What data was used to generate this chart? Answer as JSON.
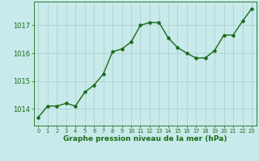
{
  "x": [
    0,
    1,
    2,
    3,
    4,
    5,
    6,
    7,
    8,
    9,
    10,
    11,
    12,
    13,
    14,
    15,
    16,
    17,
    18,
    19,
    20,
    21,
    22,
    23
  ],
  "y": [
    1013.7,
    1014.1,
    1014.1,
    1014.2,
    1014.1,
    1014.6,
    1014.85,
    1015.25,
    1016.05,
    1016.15,
    1016.4,
    1017.0,
    1017.1,
    1017.1,
    1016.55,
    1016.2,
    1016.0,
    1015.82,
    1015.83,
    1016.1,
    1016.65,
    1016.65,
    1017.15,
    1017.6
  ],
  "line_color": "#1a6b1a",
  "marker": "o",
  "marker_size": 2.2,
  "linewidth": 1.0,
  "bg_color": "#c8eaea",
  "grid_color": "#aacccc",
  "xlabel": "Graphe pression niveau de la mer (hPa)",
  "xlabel_fontsize": 6.5,
  "ylabel_ticks": [
    1014,
    1015,
    1016,
    1017
  ],
  "ytick_fontsize": 6,
  "xtick_fontsize": 4.8,
  "ylim": [
    1013.4,
    1017.85
  ],
  "xlim": [
    -0.5,
    23.5
  ],
  "axis_color": "#1a6b1a",
  "tick_color": "#1a6b1a",
  "label_color": "#1a6b1a"
}
